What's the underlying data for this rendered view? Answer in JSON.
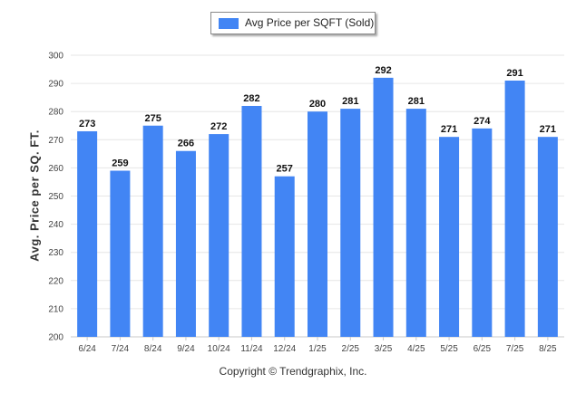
{
  "legend": {
    "label": "Avg Price per SQFT (Sold)"
  },
  "footer": {
    "copyright": "Copyright © Trendgraphix, Inc."
  },
  "chart_data": {
    "type": "bar",
    "categories": [
      "6/24",
      "7/24",
      "8/24",
      "9/24",
      "10/24",
      "11/24",
      "12/24",
      "1/25",
      "2/25",
      "3/25",
      "4/25",
      "5/25",
      "6/25",
      "7/25",
      "8/25"
    ],
    "series": [
      {
        "name": "Avg Price per SQFT (Sold)",
        "values": [
          273,
          259,
          275,
          266,
          272,
          282,
          257,
          280,
          281,
          292,
          281,
          271,
          274,
          291,
          271
        ]
      }
    ],
    "title": "",
    "xlabel": "",
    "ylabel": "Avg. Price per SQ. FT.",
    "ylim": [
      200,
      300
    ],
    "yticks": [
      200,
      210,
      220,
      230,
      240,
      250,
      260,
      270,
      280,
      290,
      300
    ],
    "grid": true,
    "legend_position": "top-center",
    "bar_color": "#4285f4",
    "data_labels": true
  }
}
